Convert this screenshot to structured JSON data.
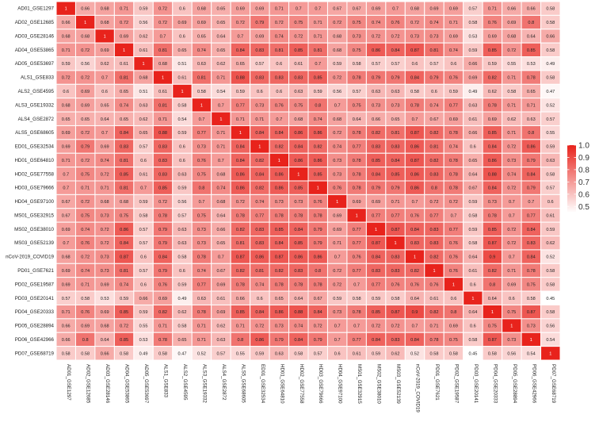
{
  "chart_data": {
    "type": "heatmap",
    "labels": [
      "AD01_GSE1297",
      "AD02_GSE12685",
      "AD03_GSE28146",
      "AD04_GSE53865",
      "AD05_GSE53697",
      "ALS1_GSE833",
      "ALS2_GSE4595",
      "ALS3_GSE19332",
      "ALS4_GSE2872",
      "ALS5_GSE68605",
      "ED01_GSE32534",
      "HD01_GSE64810",
      "HD02_GSE77558",
      "HD03_GSE79666",
      "HD04_GSE97100",
      "MS01_GSE32915",
      "MS02_GSE38010",
      "MS03_GSE52139",
      "nCoV-2019_COVID19",
      "PD01_GSE7621",
      "PD02_GSE19587",
      "PD03_GSE20141",
      "PD04_GSE20333",
      "PD05_GSE28894",
      "PD06_GSE42966",
      "PD07_GSE68719"
    ],
    "matrix": [
      [
        1,
        0.66,
        0.68,
        0.71,
        0.59,
        0.72,
        0.6,
        0.68,
        0.65,
        0.69,
        0.69,
        0.71,
        0.7,
        0.7,
        0.67,
        0.67,
        0.69,
        0.7,
        0.68,
        0.69,
        0.69,
        0.57,
        0.71,
        0.66,
        0.66,
        0.58
      ],
      [
        0.66,
        1,
        0.68,
        0.72,
        0.56,
        0.72,
        0.69,
        0.69,
        0.65,
        0.72,
        0.79,
        0.72,
        0.75,
        0.71,
        0.72,
        0.75,
        0.74,
        0.76,
        0.72,
        0.74,
        0.71,
        0.58,
        0.76,
        0.69,
        0.8,
        0.58
      ],
      [
        0.68,
        0.68,
        1,
        0.69,
        0.62,
        0.7,
        0.6,
        0.65,
        0.64,
        0.7,
        0.69,
        0.74,
        0.72,
        0.71,
        0.68,
        0.73,
        0.72,
        0.72,
        0.73,
        0.73,
        0.69,
        0.53,
        0.69,
        0.68,
        0.64,
        0.66
      ],
      [
        0.71,
        0.72,
        0.69,
        1,
        0.61,
        0.81,
        0.65,
        0.74,
        0.65,
        0.84,
        0.83,
        0.81,
        0.85,
        0.81,
        0.68,
        0.75,
        0.86,
        0.84,
        0.87,
        0.81,
        0.74,
        0.59,
        0.85,
        0.72,
        0.85,
        0.58
      ],
      [
        0.59,
        0.56,
        0.62,
        0.61,
        1,
        0.68,
        0.51,
        0.63,
        0.62,
        0.65,
        0.57,
        0.6,
        0.61,
        0.7,
        0.59,
        0.58,
        0.57,
        0.57,
        0.6,
        0.57,
        0.6,
        0.66,
        0.59,
        0.55,
        0.53,
        0.49
      ],
      [
        0.72,
        0.72,
        0.7,
        0.81,
        0.68,
        1,
        0.61,
        0.81,
        0.71,
        0.88,
        0.83,
        0.83,
        0.83,
        0.85,
        0.72,
        0.78,
        0.79,
        0.79,
        0.84,
        0.79,
        0.76,
        0.69,
        0.82,
        0.71,
        0.78,
        0.58
      ],
      [
        0.6,
        0.69,
        0.6,
        0.65,
        0.51,
        0.61,
        1,
        0.58,
        0.54,
        0.59,
        0.6,
        0.6,
        0.63,
        0.59,
        0.56,
        0.57,
        0.63,
        0.63,
        0.58,
        0.6,
        0.59,
        0.49,
        0.62,
        0.58,
        0.65,
        0.47
      ],
      [
        0.68,
        0.69,
        0.65,
        0.74,
        0.63,
        0.81,
        0.58,
        1,
        0.7,
        0.77,
        0.73,
        0.76,
        0.75,
        0.8,
        0.7,
        0.75,
        0.73,
        0.73,
        0.78,
        0.74,
        0.77,
        0.63,
        0.78,
        0.71,
        0.71,
        0.52
      ],
      [
        0.65,
        0.65,
        0.64,
        0.65,
        0.62,
        0.71,
        0.54,
        0.7,
        1,
        0.71,
        0.71,
        0.7,
        0.68,
        0.74,
        0.68,
        0.64,
        0.66,
        0.65,
        0.7,
        0.67,
        0.69,
        0.61,
        0.69,
        0.62,
        0.63,
        0.57
      ],
      [
        0.69,
        0.72,
        0.7,
        0.84,
        0.65,
        0.88,
        0.59,
        0.77,
        0.71,
        1,
        0.84,
        0.84,
        0.86,
        0.86,
        0.72,
        0.78,
        0.82,
        0.81,
        0.87,
        0.82,
        0.78,
        0.66,
        0.85,
        0.71,
        0.8,
        0.55
      ],
      [
        0.69,
        0.79,
        0.69,
        0.83,
        0.57,
        0.83,
        0.6,
        0.73,
        0.71,
        0.84,
        1,
        0.82,
        0.84,
        0.82,
        0.74,
        0.77,
        0.83,
        0.83,
        0.86,
        0.81,
        0.74,
        0.6,
        0.84,
        0.72,
        0.86,
        0.59
      ],
      [
        0.71,
        0.72,
        0.74,
        0.81,
        0.6,
        0.83,
        0.6,
        0.76,
        0.7,
        0.84,
        0.82,
        1,
        0.86,
        0.86,
        0.73,
        0.78,
        0.85,
        0.84,
        0.87,
        0.82,
        0.78,
        0.65,
        0.86,
        0.73,
        0.79,
        0.63
      ],
      [
        0.7,
        0.75,
        0.72,
        0.85,
        0.61,
        0.83,
        0.63,
        0.75,
        0.68,
        0.86,
        0.84,
        0.86,
        1,
        0.85,
        0.73,
        0.78,
        0.84,
        0.85,
        0.86,
        0.83,
        0.78,
        0.64,
        0.88,
        0.74,
        0.84,
        0.58
      ],
      [
        0.7,
        0.71,
        0.71,
        0.81,
        0.7,
        0.85,
        0.59,
        0.8,
        0.74,
        0.86,
        0.82,
        0.86,
        0.85,
        1,
        0.76,
        0.78,
        0.79,
        0.79,
        0.86,
        0.8,
        0.78,
        0.67,
        0.84,
        0.72,
        0.79,
        0.57
      ],
      [
        0.67,
        0.72,
        0.68,
        0.68,
        0.59,
        0.72,
        0.56,
        0.7,
        0.68,
        0.72,
        0.74,
        0.73,
        0.73,
        0.76,
        1,
        0.69,
        0.69,
        0.71,
        0.7,
        0.72,
        0.72,
        0.59,
        0.73,
        0.7,
        0.7,
        0.6
      ],
      [
        0.67,
        0.75,
        0.73,
        0.75,
        0.58,
        0.78,
        0.57,
        0.75,
        0.64,
        0.78,
        0.77,
        0.78,
        0.78,
        0.78,
        0.69,
        1,
        0.77,
        0.77,
        0.76,
        0.77,
        0.7,
        0.58,
        0.78,
        0.7,
        0.77,
        0.61
      ],
      [
        0.69,
        0.74,
        0.72,
        0.86,
        0.57,
        0.79,
        0.63,
        0.73,
        0.66,
        0.82,
        0.83,
        0.85,
        0.84,
        0.79,
        0.69,
        0.77,
        1,
        0.87,
        0.84,
        0.83,
        0.77,
        0.59,
        0.85,
        0.72,
        0.84,
        0.59
      ],
      [
        0.7,
        0.76,
        0.72,
        0.84,
        0.57,
        0.79,
        0.63,
        0.73,
        0.65,
        0.81,
        0.83,
        0.84,
        0.85,
        0.79,
        0.71,
        0.77,
        0.87,
        1,
        0.83,
        0.83,
        0.76,
        0.58,
        0.87,
        0.72,
        0.83,
        0.62
      ],
      [
        0.68,
        0.72,
        0.73,
        0.87,
        0.6,
        0.84,
        0.58,
        0.78,
        0.7,
        0.87,
        0.86,
        0.87,
        0.86,
        0.86,
        0.7,
        0.76,
        0.84,
        0.83,
        1,
        0.82,
        0.76,
        0.64,
        0.9,
        0.7,
        0.84,
        0.52
      ],
      [
        0.69,
        0.74,
        0.73,
        0.81,
        0.57,
        0.79,
        0.6,
        0.74,
        0.67,
        0.82,
        0.81,
        0.82,
        0.83,
        0.8,
        0.72,
        0.77,
        0.83,
        0.83,
        0.82,
        1,
        0.76,
        0.61,
        0.82,
        0.71,
        0.78,
        0.58
      ],
      [
        0.69,
        0.71,
        0.69,
        0.74,
        0.6,
        0.76,
        0.59,
        0.77,
        0.69,
        0.78,
        0.74,
        0.78,
        0.78,
        0.78,
        0.72,
        0.7,
        0.77,
        0.76,
        0.76,
        0.76,
        1,
        0.6,
        0.8,
        0.69,
        0.75,
        0.58
      ],
      [
        0.57,
        0.58,
        0.53,
        0.59,
        0.66,
        0.69,
        0.49,
        0.63,
        0.61,
        0.66,
        0.6,
        0.65,
        0.64,
        0.67,
        0.59,
        0.58,
        0.59,
        0.58,
        0.64,
        0.61,
        0.6,
        1,
        0.64,
        0.6,
        0.58,
        0.45
      ],
      [
        0.71,
        0.76,
        0.69,
        0.85,
        0.59,
        0.82,
        0.62,
        0.78,
        0.69,
        0.85,
        0.84,
        0.86,
        0.88,
        0.84,
        0.73,
        0.78,
        0.85,
        0.87,
        0.9,
        0.82,
        0.8,
        0.64,
        1,
        0.75,
        0.87,
        0.58
      ],
      [
        0.66,
        0.69,
        0.68,
        0.72,
        0.55,
        0.71,
        0.58,
        0.71,
        0.62,
        0.71,
        0.72,
        0.73,
        0.74,
        0.72,
        0.7,
        0.7,
        0.72,
        0.72,
        0.7,
        0.71,
        0.69,
        0.6,
        0.75,
        1,
        0.73,
        0.56
      ],
      [
        0.66,
        0.8,
        0.64,
        0.85,
        0.53,
        0.78,
        0.65,
        0.71,
        0.63,
        0.8,
        0.86,
        0.79,
        0.84,
        0.79,
        0.7,
        0.77,
        0.84,
        0.83,
        0.84,
        0.78,
        0.75,
        0.58,
        0.87,
        0.73,
        1,
        0.54
      ],
      [
        0.58,
        0.58,
        0.66,
        0.58,
        0.49,
        0.58,
        0.47,
        0.52,
        0.57,
        0.55,
        0.59,
        0.63,
        0.58,
        0.57,
        0.6,
        0.61,
        0.59,
        0.62,
        0.52,
        0.58,
        0.58,
        0.45,
        0.58,
        0.56,
        0.54,
        1
      ]
    ],
    "colorbar": {
      "ticks": [
        "1.0",
        "0.9",
        "0.8",
        "0.7",
        "0.6",
        "0.5"
      ],
      "tick_values": [
        1.0,
        0.9,
        0.8,
        0.7,
        0.6,
        0.5
      ],
      "range": [
        0.45,
        1.0
      ],
      "low_color": "#ffffff",
      "high_color": "#e8231c"
    },
    "grid": "white cell borders",
    "legend_placement": "right"
  }
}
